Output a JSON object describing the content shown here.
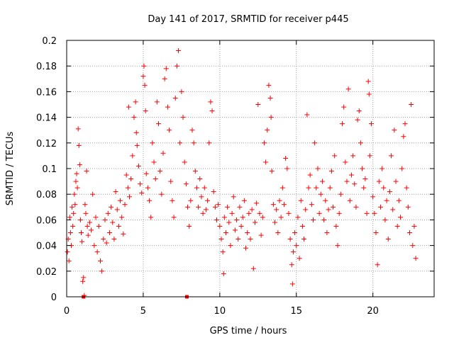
{
  "chart_data": {
    "type": "scatter",
    "title": "Day 141 of 2017, SRMTID for receiver p445",
    "xlabel": "GPS time / hours",
    "ylabel": "SRMTID / TECUs",
    "xlim": [
      0,
      24
    ],
    "ylim": [
      0,
      0.2
    ],
    "xticks": [
      0,
      5,
      10,
      15,
      20
    ],
    "yticks": [
      0,
      0.02,
      0.04,
      0.06,
      0.08,
      0.1,
      0.12,
      0.14,
      0.16,
      0.18,
      0.2
    ],
    "grid": true,
    "marker": "+",
    "color": "#ff0000",
    "series": [
      {
        "name": "SRMTID",
        "points": [
          [
            0.05,
            0.035
          ],
          [
            0.1,
            0.045
          ],
          [
            0.15,
            0.028
          ],
          [
            0.2,
            0.062
          ],
          [
            0.25,
            0.05
          ],
          [
            0.3,
            0.04
          ],
          [
            0.35,
            0.07
          ],
          [
            0.4,
            0.055
          ],
          [
            0.45,
            0.065
          ],
          [
            0.5,
            0.08
          ],
          [
            0.55,
            0.072
          ],
          [
            0.6,
            0.09
          ],
          [
            0.65,
            0.096
          ],
          [
            0.7,
            0.085
          ],
          [
            0.75,
            0.131
          ],
          [
            0.8,
            0.118
          ],
          [
            0.85,
            0.103
          ],
          [
            0.9,
            0.06
          ],
          [
            0.95,
            0.05
          ],
          [
            1.0,
            0.043
          ],
          [
            1.05,
            0.012
          ],
          [
            1.1,
            0.015
          ],
          [
            1.15,
            0.001
          ],
          [
            1.2,
            0.072
          ],
          [
            1.25,
            0.065
          ],
          [
            1.3,
            0.098
          ],
          [
            1.35,
            0.055
          ],
          [
            1.4,
            0.048
          ],
          [
            1.5,
            0.058
          ],
          [
            1.6,
            0.052
          ],
          [
            1.7,
            0.08
          ],
          [
            1.8,
            0.04
          ],
          [
            1.9,
            0.062
          ],
          [
            2.0,
            0.035
          ],
          [
            2.1,
            0.055
          ],
          [
            2.2,
            0.028
          ],
          [
            2.3,
            0.02
          ],
          [
            2.4,
            0.045
          ],
          [
            2.5,
            0.06
          ],
          [
            2.6,
            0.042
          ],
          [
            2.7,
            0.065
          ],
          [
            2.8,
            0.05
          ],
          [
            2.9,
            0.07
          ],
          [
            3.0,
            0.058
          ],
          [
            3.1,
            0.045
          ],
          [
            3.2,
            0.082
          ],
          [
            3.3,
            0.068
          ],
          [
            3.4,
            0.055
          ],
          [
            3.5,
            0.075
          ],
          [
            3.6,
            0.062
          ],
          [
            3.7,
            0.049
          ],
          [
            3.8,
            0.072
          ],
          [
            3.9,
            0.095
          ],
          [
            4.0,
            0.085
          ],
          [
            4.05,
            0.148
          ],
          [
            4.1,
            0.078
          ],
          [
            4.2,
            0.092
          ],
          [
            4.3,
            0.11
          ],
          [
            4.4,
            0.14
          ],
          [
            4.5,
            0.152
          ],
          [
            4.55,
            0.128
          ],
          [
            4.6,
            0.118
          ],
          [
            4.7,
            0.102
          ],
          [
            4.8,
            0.088
          ],
          [
            4.9,
            0.081
          ],
          [
            5.0,
            0.172
          ],
          [
            5.05,
            0.18
          ],
          [
            5.1,
            0.165
          ],
          [
            5.15,
            0.145
          ],
          [
            5.2,
            0.096
          ],
          [
            5.3,
            0.085
          ],
          [
            5.4,
            0.075
          ],
          [
            5.5,
            0.062
          ],
          [
            5.6,
            0.12
          ],
          [
            5.7,
            0.105
          ],
          [
            5.8,
            0.092
          ],
          [
            5.9,
            0.152
          ],
          [
            6.0,
            0.135
          ],
          [
            6.1,
            0.098
          ],
          [
            6.2,
            0.08
          ],
          [
            6.3,
            0.112
          ],
          [
            6.4,
            0.17
          ],
          [
            6.5,
            0.178
          ],
          [
            6.6,
            0.148
          ],
          [
            6.7,
            0.13
          ],
          [
            6.8,
            0.09
          ],
          [
            6.9,
            0.075
          ],
          [
            7.0,
            0.062
          ],
          [
            7.1,
            0.155
          ],
          [
            7.2,
            0.18
          ],
          [
            7.3,
            0.192
          ],
          [
            7.4,
            0.12
          ],
          [
            7.5,
            0.16
          ],
          [
            7.6,
            0.14
          ],
          [
            7.7,
            0.105
          ],
          [
            7.8,
            0.088
          ],
          [
            7.9,
            0.07
          ],
          [
            8.0,
            0.055
          ],
          [
            8.1,
            0.075
          ],
          [
            8.2,
            0.13
          ],
          [
            8.3,
            0.12
          ],
          [
            8.4,
            0.098
          ],
          [
            8.5,
            0.085
          ],
          [
            8.6,
            0.07
          ],
          [
            8.7,
            0.092
          ],
          [
            8.8,
            0.078
          ],
          [
            8.9,
            0.065
          ],
          [
            9.0,
            0.085
          ],
          [
            9.1,
            0.068
          ],
          [
            9.2,
            0.075
          ],
          [
            9.3,
            0.12
          ],
          [
            9.4,
            0.152
          ],
          [
            9.5,
            0.145
          ],
          [
            9.6,
            0.082
          ],
          [
            9.7,
            0.07
          ],
          [
            9.8,
            0.06
          ],
          [
            9.9,
            0.072
          ],
          [
            10.0,
            0.055
          ],
          [
            10.1,
            0.045
          ],
          [
            10.2,
            0.035
          ],
          [
            10.25,
            0.018
          ],
          [
            10.3,
            0.062
          ],
          [
            10.4,
            0.05
          ],
          [
            10.5,
            0.07
          ],
          [
            10.6,
            0.058
          ],
          [
            10.7,
            0.04
          ],
          [
            10.8,
            0.065
          ],
          [
            10.9,
            0.078
          ],
          [
            11.0,
            0.052
          ],
          [
            11.1,
            0.06
          ],
          [
            11.2,
            0.045
          ],
          [
            11.3,
            0.07
          ],
          [
            11.4,
            0.055
          ],
          [
            11.5,
            0.062
          ],
          [
            11.6,
            0.075
          ],
          [
            11.7,
            0.038
          ],
          [
            11.8,
            0.05
          ],
          [
            11.9,
            0.065
          ],
          [
            12.0,
            0.045
          ],
          [
            12.1,
            0.068
          ],
          [
            12.2,
            0.022
          ],
          [
            12.3,
            0.058
          ],
          [
            12.4,
            0.073
          ],
          [
            12.5,
            0.15
          ],
          [
            12.6,
            0.065
          ],
          [
            12.7,
            0.048
          ],
          [
            12.8,
            0.062
          ],
          [
            12.9,
            0.12
          ],
          [
            13.0,
            0.105
          ],
          [
            13.1,
            0.13
          ],
          [
            13.2,
            0.165
          ],
          [
            13.3,
            0.155
          ],
          [
            13.35,
            0.14
          ],
          [
            13.4,
            0.098
          ],
          [
            13.5,
            0.072
          ],
          [
            13.6,
            0.058
          ],
          [
            13.7,
            0.068
          ],
          [
            13.8,
            0.05
          ],
          [
            13.9,
            0.075
          ],
          [
            14.0,
            0.062
          ],
          [
            14.1,
            0.085
          ],
          [
            14.2,
            0.072
          ],
          [
            14.3,
            0.108
          ],
          [
            14.4,
            0.1
          ],
          [
            14.5,
            0.065
          ],
          [
            14.6,
            0.045
          ],
          [
            14.7,
            0.025
          ],
          [
            14.75,
            0.01
          ],
          [
            14.8,
            0.035
          ],
          [
            14.9,
            0.05
          ],
          [
            15.0,
            0.04
          ],
          [
            15.1,
            0.062
          ],
          [
            15.2,
            0.03
          ],
          [
            15.3,
            0.075
          ],
          [
            15.4,
            0.055
          ],
          [
            15.5,
            0.045
          ],
          [
            15.6,
            0.068
          ],
          [
            15.7,
            0.142
          ],
          [
            15.8,
            0.085
          ],
          [
            15.9,
            0.095
          ],
          [
            16.0,
            0.072
          ],
          [
            16.1,
            0.06
          ],
          [
            16.2,
            0.12
          ],
          [
            16.3,
            0.085
          ],
          [
            16.4,
            0.1
          ],
          [
            16.5,
            0.065
          ],
          [
            16.6,
            0.08
          ],
          [
            16.7,
            0.09
          ],
          [
            16.8,
            0.06
          ],
          [
            16.9,
            0.075
          ],
          [
            17.0,
            0.05
          ],
          [
            17.1,
            0.068
          ],
          [
            17.2,
            0.085
          ],
          [
            17.3,
            0.098
          ],
          [
            17.4,
            0.07
          ],
          [
            17.5,
            0.11
          ],
          [
            17.6,
            0.055
          ],
          [
            17.7,
            0.04
          ],
          [
            17.8,
            0.065
          ],
          [
            17.9,
            0.08
          ],
          [
            18.0,
            0.135
          ],
          [
            18.1,
            0.148
          ],
          [
            18.2,
            0.105
          ],
          [
            18.3,
            0.09
          ],
          [
            18.4,
            0.162
          ],
          [
            18.5,
            0.075
          ],
          [
            18.6,
            0.095
          ],
          [
            18.7,
            0.11
          ],
          [
            18.8,
            0.088
          ],
          [
            18.9,
            0.07
          ],
          [
            19.0,
            0.138
          ],
          [
            19.1,
            0.145
          ],
          [
            19.2,
            0.12
          ],
          [
            19.3,
            0.1
          ],
          [
            19.4,
            0.085
          ],
          [
            19.5,
            0.092
          ],
          [
            19.6,
            0.065
          ],
          [
            19.7,
            0.168
          ],
          [
            19.75,
            0.158
          ],
          [
            19.8,
            0.11
          ],
          [
            19.9,
            0.135
          ],
          [
            20.0,
            0.078
          ],
          [
            20.1,
            0.065
          ],
          [
            20.2,
            0.05
          ],
          [
            20.3,
            0.025
          ],
          [
            20.4,
            0.09
          ],
          [
            20.5,
            0.07
          ],
          [
            20.6,
            0.1
          ],
          [
            20.7,
            0.085
          ],
          [
            20.8,
            0.06
          ],
          [
            20.9,
            0.075
          ],
          [
            21.0,
            0.045
          ],
          [
            21.1,
            0.082
          ],
          [
            21.2,
            0.11
          ],
          [
            21.3,
            0.068
          ],
          [
            21.4,
            0.13
          ],
          [
            21.5,
            0.09
          ],
          [
            21.6,
            0.055
          ],
          [
            21.7,
            0.075
          ],
          [
            21.8,
            0.062
          ],
          [
            21.9,
            0.1
          ],
          [
            22.0,
            0.125
          ],
          [
            22.1,
            0.135
          ],
          [
            22.2,
            0.085
          ],
          [
            22.3,
            0.07
          ],
          [
            22.4,
            0.05
          ],
          [
            22.5,
            0.15
          ],
          [
            22.6,
            0.04
          ],
          [
            22.7,
            0.055
          ],
          [
            22.8,
            0.03
          ]
        ]
      }
    ],
    "zero_markers": [
      [
        1.1,
        0.0
      ],
      [
        7.85,
        0.0
      ]
    ]
  }
}
